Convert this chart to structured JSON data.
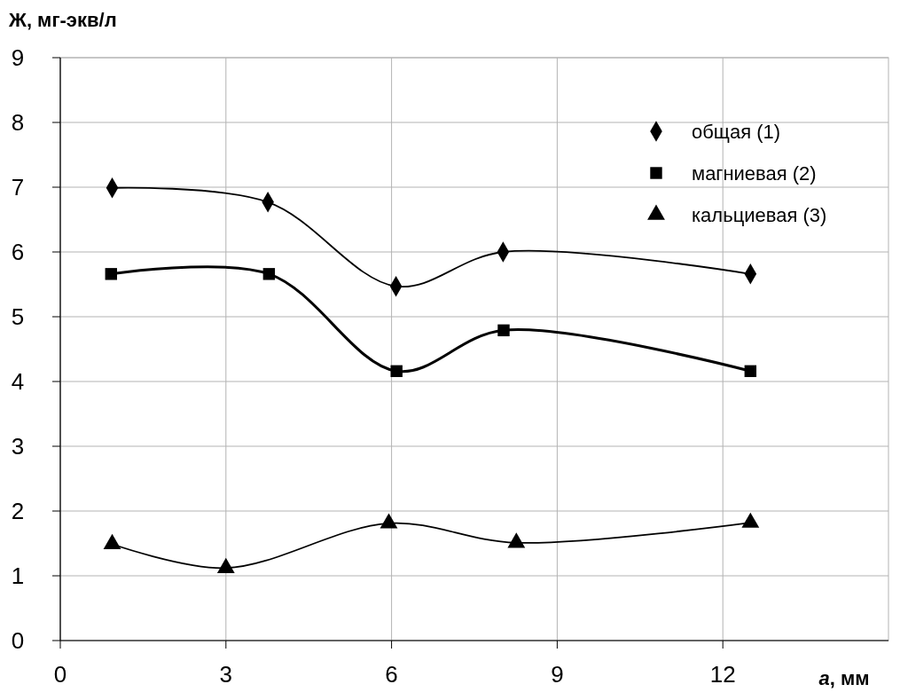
{
  "chart_data": {
    "type": "line",
    "xlabel": "a, мм",
    "ylabel": "Ж, мг-экв/л",
    "xlim": [
      0,
      15
    ],
    "xticks": [
      0,
      3,
      6,
      9,
      12
    ],
    "ylim": [
      0,
      9
    ],
    "yticks": [
      0,
      1,
      2,
      3,
      4,
      5,
      6,
      7,
      8,
      9
    ],
    "grid": true,
    "legend": "top right",
    "series": [
      {
        "name": "общая (1)",
        "color": "#000000",
        "marker": "diamond",
        "x": [
          0.94,
          3.76,
          6.08,
          8.02,
          12.5
        ],
        "values": [
          6.99,
          6.77,
          5.47,
          6.0,
          5.66
        ]
      },
      {
        "name": "магниевая (2)",
        "color": "#000000",
        "marker": "square",
        "x": [
          0.92,
          3.78,
          6.09,
          8.03,
          12.5
        ],
        "values": [
          5.66,
          5.66,
          4.16,
          4.79,
          4.16
        ]
      },
      {
        "name": "кальциевая (3)",
        "color": "#000000",
        "marker": "triangle",
        "x": [
          0.94,
          3.0,
          5.95,
          8.26,
          12.5
        ],
        "values": [
          1.49,
          1.12,
          1.81,
          1.51,
          1.82
        ]
      }
    ]
  }
}
